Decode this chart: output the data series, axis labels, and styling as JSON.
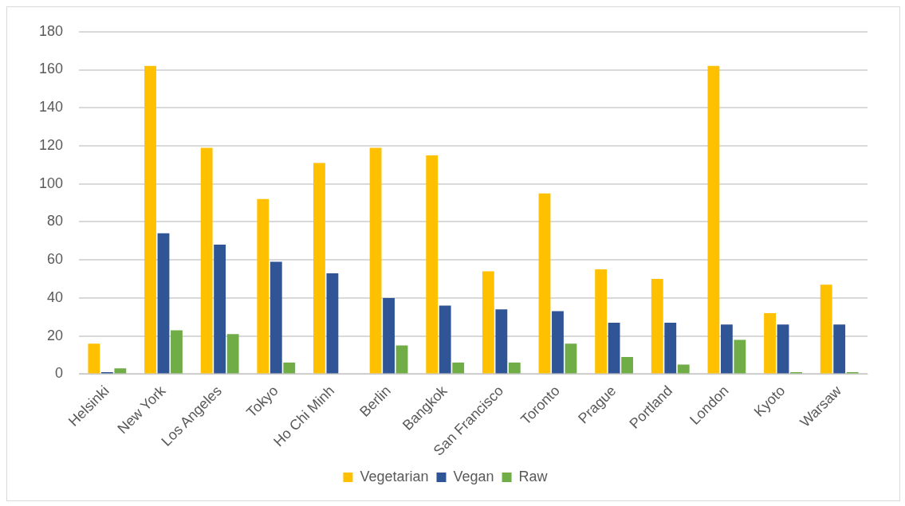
{
  "chart_data": {
    "type": "bar",
    "categories": [
      "Helsinki",
      "New York",
      "Los Angeles",
      "Tokyo",
      "Ho Chi Minh",
      "Berlin",
      "Bangkok",
      "San Francisco",
      "Toronto",
      "Prague",
      "Portland",
      "London",
      "Kyoto",
      "Warsaw"
    ],
    "series": [
      {
        "name": "Vegetarian",
        "color": "#ffc000",
        "values": [
          16,
          162,
          119,
          92,
          111,
          119,
          115,
          54,
          95,
          55,
          50,
          162,
          32,
          47
        ]
      },
      {
        "name": "Vegan",
        "color": "#2f5597",
        "values": [
          1,
          74,
          68,
          59,
          53,
          40,
          36,
          34,
          33,
          27,
          27,
          26,
          26,
          26
        ]
      },
      {
        "name": "Raw",
        "color": "#70ad47",
        "values": [
          3,
          23,
          21,
          6,
          0,
          15,
          6,
          6,
          16,
          9,
          5,
          18,
          1,
          1
        ]
      }
    ],
    "ylim": [
      0,
      180
    ],
    "yticks": [
      0,
      20,
      40,
      60,
      80,
      100,
      120,
      140,
      160,
      180
    ],
    "grid": "y",
    "legend": "bottom"
  }
}
